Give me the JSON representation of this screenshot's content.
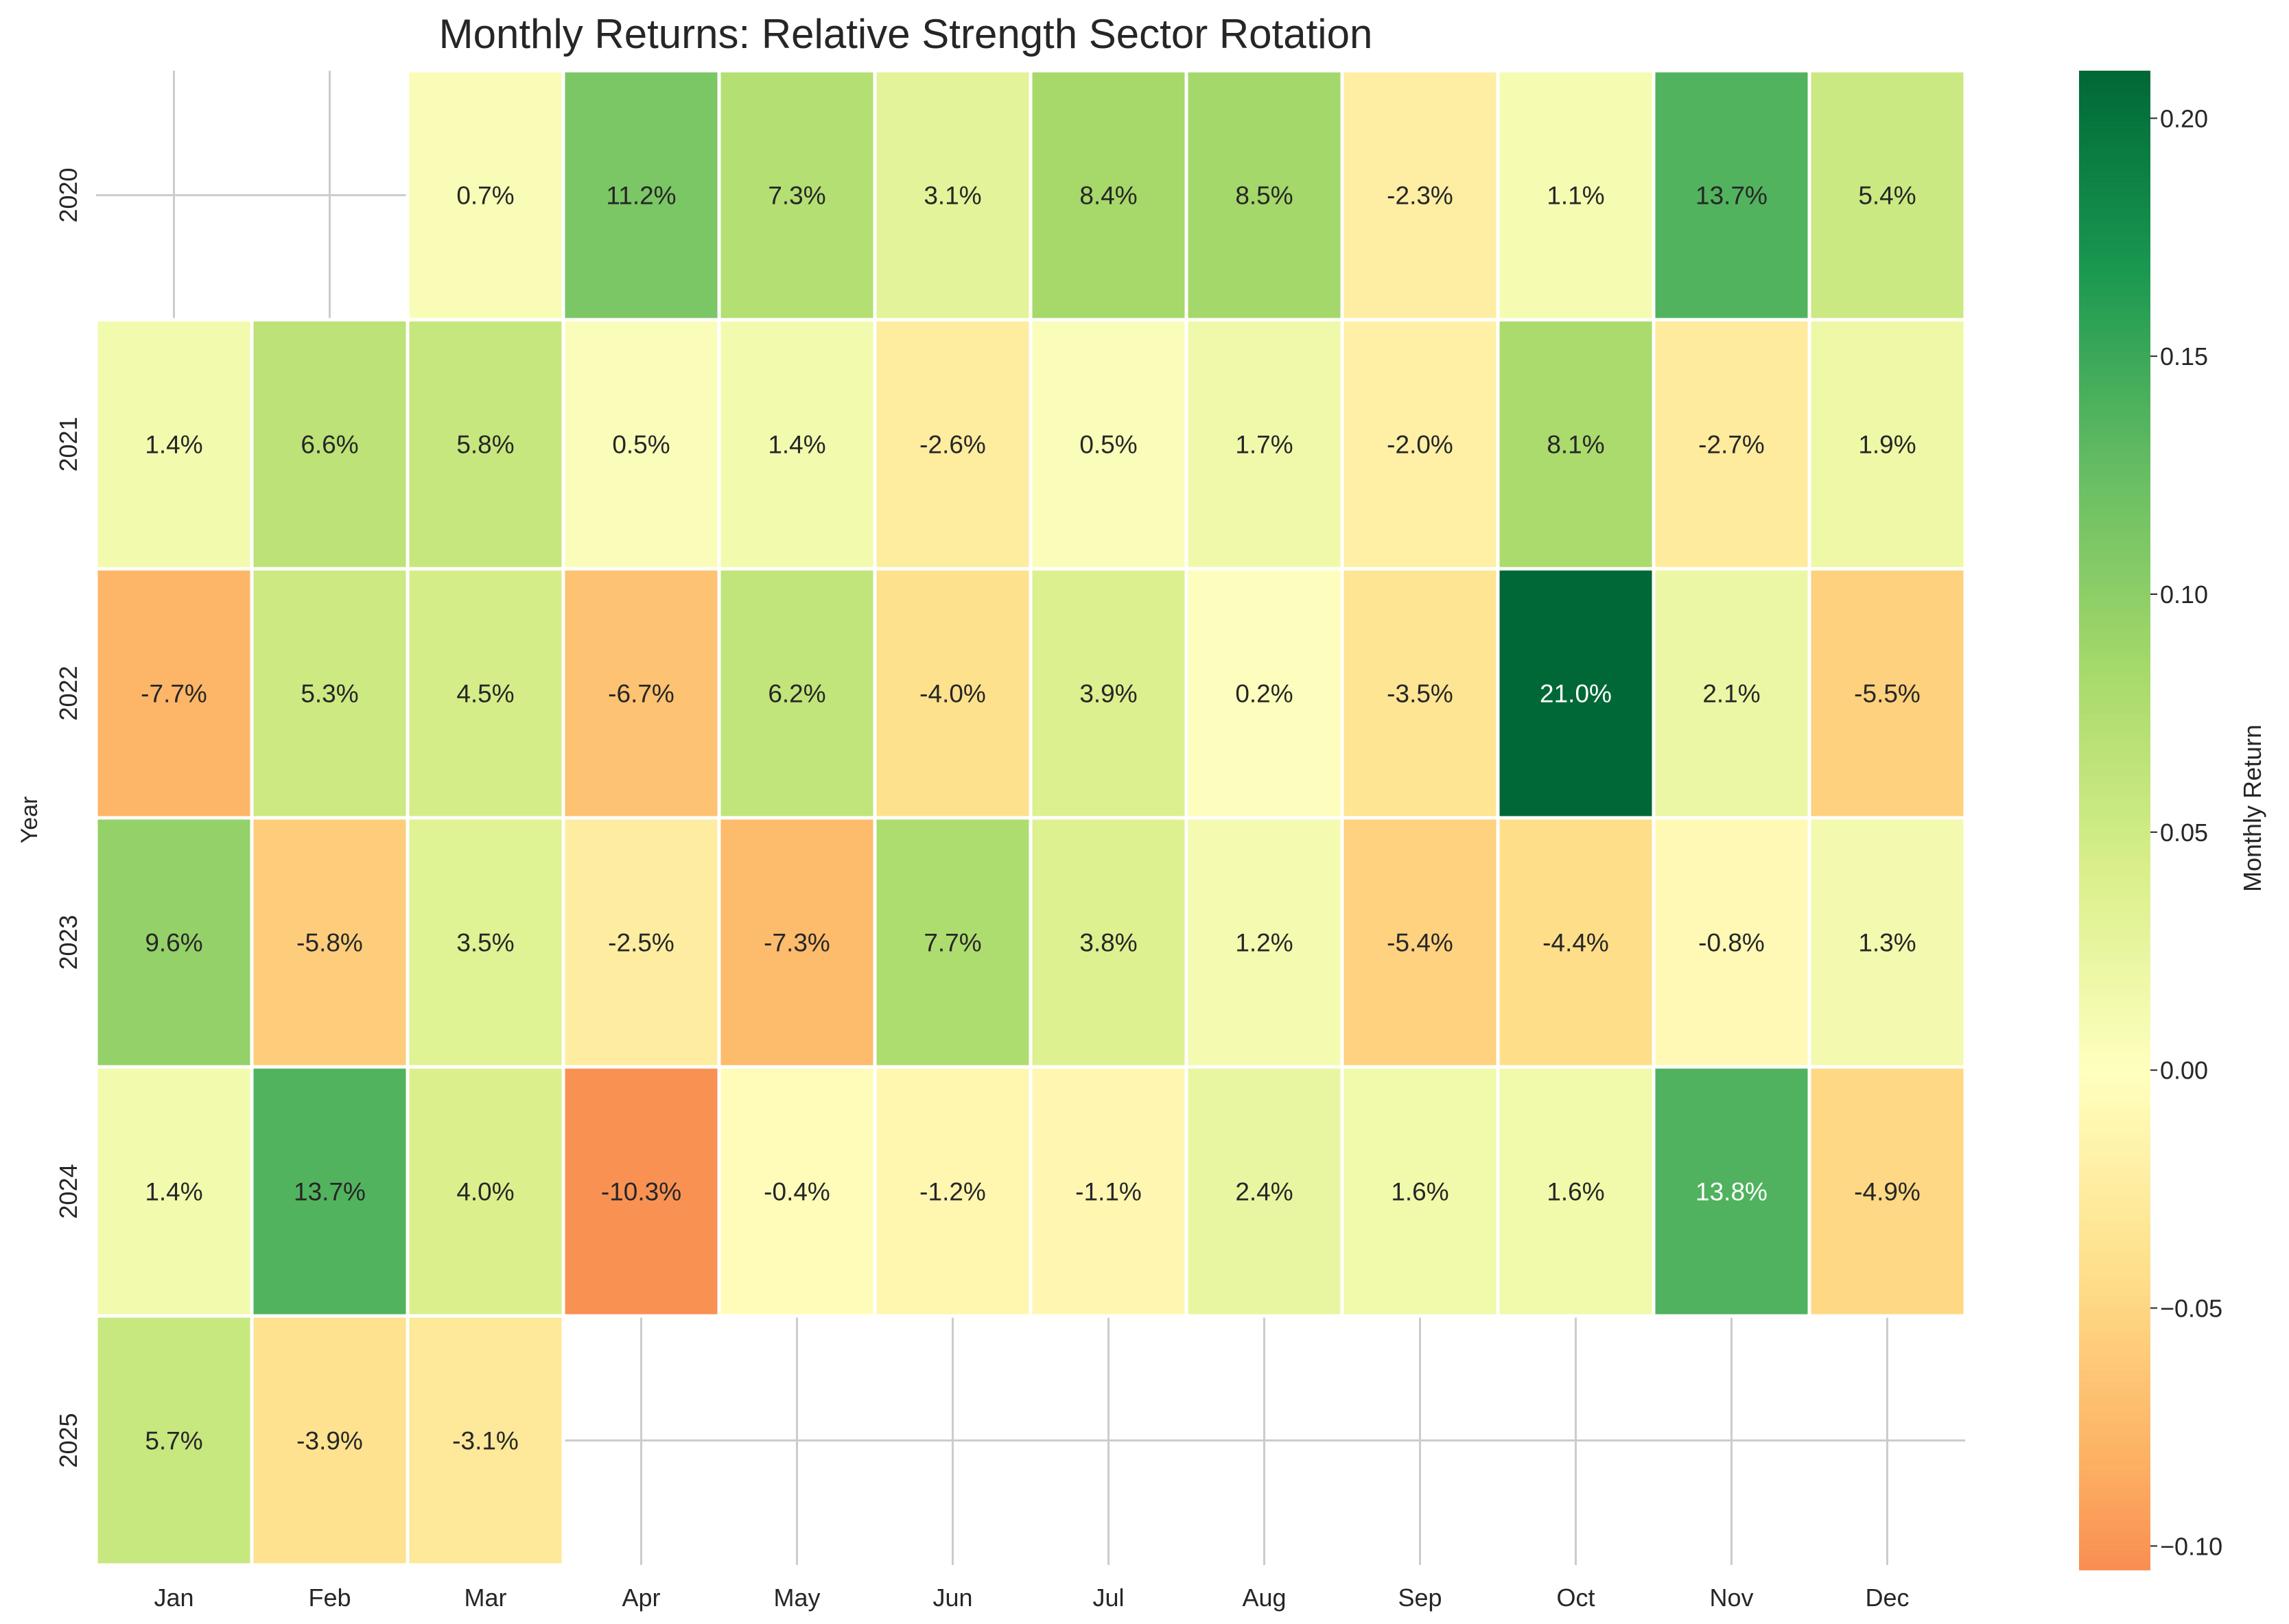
{
  "chart_data": {
    "type": "heatmap",
    "title": "Monthly Returns: Relative Strength Sector Rotation",
    "xlabel": "",
    "ylabel": "Year",
    "colorbar_label": "Monthly Return",
    "columns": [
      "Jan",
      "Feb",
      "Mar",
      "Apr",
      "May",
      "Jun",
      "Jul",
      "Aug",
      "Sep",
      "Oct",
      "Nov",
      "Dec"
    ],
    "rows": [
      "2020",
      "2021",
      "2022",
      "2023",
      "2024",
      "2025"
    ],
    "values": [
      [
        null,
        null,
        0.007,
        0.112,
        0.073,
        0.031,
        0.084,
        0.085,
        -0.023,
        0.011,
        0.137,
        0.054
      ],
      [
        0.014,
        0.066,
        0.058,
        0.005,
        0.014,
        -0.026,
        0.005,
        0.017,
        -0.02,
        0.081,
        -0.027,
        0.019
      ],
      [
        -0.077,
        0.053,
        0.045,
        -0.067,
        0.062,
        -0.04,
        0.039,
        0.002,
        -0.035,
        0.21,
        0.021,
        -0.055
      ],
      [
        0.096,
        -0.058,
        0.035,
        -0.025,
        -0.073,
        0.077,
        0.038,
        0.012,
        -0.054,
        -0.044,
        -0.008,
        0.013
      ],
      [
        0.014,
        0.137,
        0.04,
        -0.103,
        -0.004,
        -0.012,
        -0.011,
        0.024,
        0.016,
        0.016,
        0.138,
        -0.049
      ],
      [
        0.057,
        -0.039,
        -0.031,
        null,
        null,
        null,
        null,
        null,
        null,
        null,
        null,
        null
      ]
    ],
    "labels": [
      [
        "",
        "",
        "0.7%",
        "11.2%",
        "7.3%",
        "3.1%",
        "8.4%",
        "8.5%",
        "-2.3%",
        "1.1%",
        "13.7%",
        "5.4%"
      ],
      [
        "1.4%",
        "6.6%",
        "5.8%",
        "0.5%",
        "1.4%",
        "-2.6%",
        "0.5%",
        "1.7%",
        "-2.0%",
        "8.1%",
        "-2.7%",
        "1.9%"
      ],
      [
        "-7.7%",
        "5.3%",
        "4.5%",
        "-6.7%",
        "6.2%",
        "-4.0%",
        "3.9%",
        "0.2%",
        "-3.5%",
        "21.0%",
        "2.1%",
        "-5.5%"
      ],
      [
        "9.6%",
        "-5.8%",
        "3.5%",
        "-2.5%",
        "-7.3%",
        "7.7%",
        "3.8%",
        "1.2%",
        "-5.4%",
        "-4.4%",
        "-0.8%",
        "1.3%"
      ],
      [
        "1.4%",
        "13.7%",
        "4.0%",
        "-10.3%",
        "-0.4%",
        "-1.2%",
        "-1.1%",
        "2.4%",
        "1.6%",
        "1.6%",
        "13.8%",
        "-4.9%"
      ],
      [
        "5.7%",
        "-3.9%",
        "-3.1%",
        "",
        "",
        "",
        "",
        "",
        "",
        "",
        "",
        ""
      ]
    ],
    "colorscale": {
      "name": "RdYlGn",
      "center": 0.0,
      "vmin": -0.105,
      "vmax": 0.21,
      "stops": [
        "#a50026",
        "#d73027",
        "#f46d43",
        "#fdae61",
        "#fee08b",
        "#ffffbf",
        "#d9ef8b",
        "#a6d96a",
        "#66bd63",
        "#1a9850",
        "#006837"
      ]
    },
    "colorbar_ticks": [
      -0.1,
      -0.05,
      0.0,
      0.05,
      0.1,
      0.15,
      0.2
    ],
    "colorbar_tick_labels": [
      "−0.10",
      "−0.05",
      "0.00",
      "0.05",
      "0.10",
      "0.15",
      "0.20"
    ],
    "grid": true
  }
}
